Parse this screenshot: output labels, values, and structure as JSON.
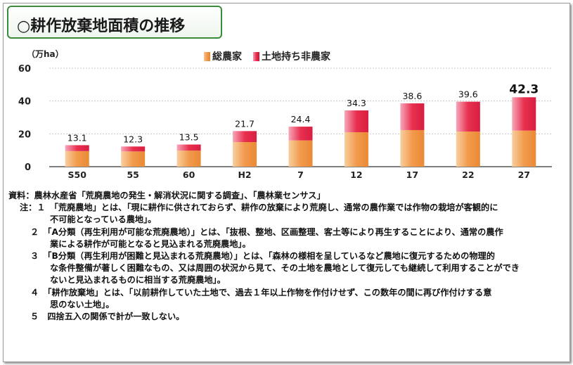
{
  "title": "○耕作放棄地面積の推移",
  "unit_label": "（万ha）",
  "chart_data": {
    "type": "bar",
    "stacked": true,
    "categories": [
      "S50",
      "55",
      "60",
      "H2",
      "7",
      "12",
      "17",
      "22",
      "27"
    ],
    "series": [
      {
        "name": "総農家",
        "values": [
          9.5,
          9.3,
          9.8,
          15.0,
          16.0,
          21.0,
          22.3,
          21.4,
          22.0
        ],
        "color": "#f29a4c"
      },
      {
        "name": "土地持ち非農家",
        "values": [
          3.6,
          3.0,
          3.7,
          6.7,
          8.4,
          13.3,
          16.3,
          18.2,
          20.3
        ],
        "color": "#e8304f"
      }
    ],
    "totals": [
      "13.1",
      "12.3",
      "13.5",
      "21.7",
      "24.4",
      "34.3",
      "38.6",
      "39.6",
      "42.3"
    ],
    "ylim": [
      0,
      60
    ],
    "yticks": [
      0,
      20,
      40,
      60
    ],
    "grid": true,
    "legend": "top-center"
  },
  "notes": {
    "source": "資料：農林水産省「荒廃農地の発生・解消状況に関する調査」、「農林業センサス」",
    "n1a": "注：１　「荒廃農地」とは、「現に耕作に供されておらず、耕作の放棄により荒廃し、通常の農作業では作物の栽培が客観的に",
    "n1b": "不可能となっている農地」。",
    "n2a": "２　「A分類（再生利用が可能な荒廃農地）」とは、「抜根、整地、区画整理、客土等により再生することにより、通常の農作",
    "n2b": "業による耕作が可能となると見込まれる荒廃農地」。",
    "n3a": "３　「B分類（再生利用が困難と見込まれる荒廃農地）」とは、「森林の様相を呈しているなど農地に復元するための物理的",
    "n3b": "な条件整備が著しく困難なもの、又は周囲の状況から見て、その土地を農地として復元しても継続して利用することができ",
    "n3c": "ないと見込まれるものに相当する荒廃農地」。",
    "n4a": "４　「耕作放棄地」とは、「以前耕作していた土地で、過去１年以上作物を作付けせず、この数年の間に再び作付けする意",
    "n4b": "思のない土地」。",
    "n5": "５　四捨五入の関係で計が一致しない。"
  }
}
